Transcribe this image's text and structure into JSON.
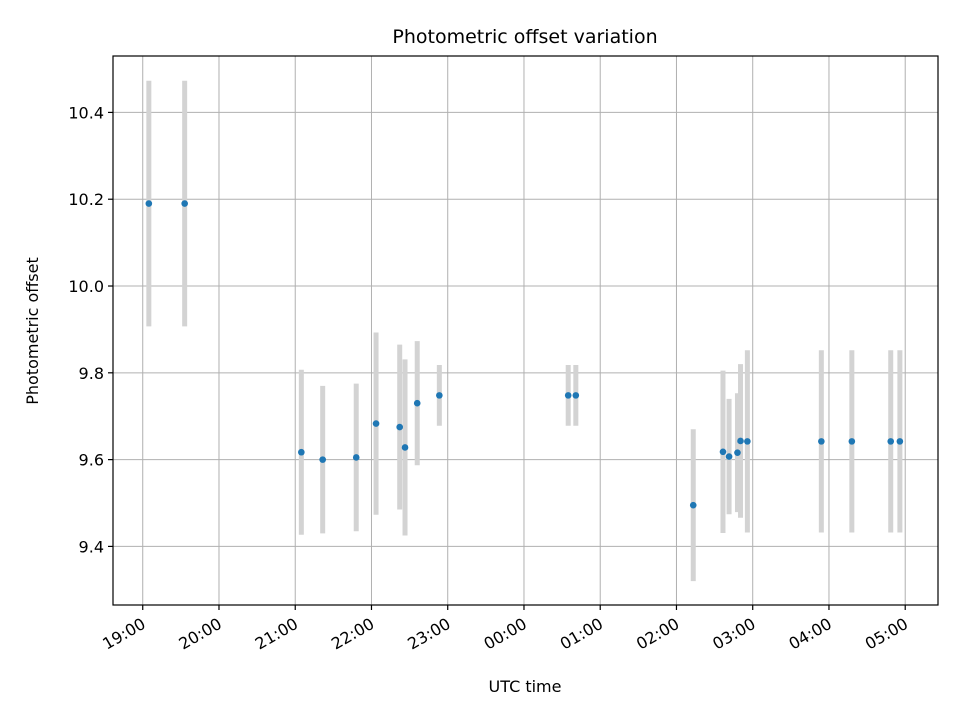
{
  "chart_data": {
    "type": "scatter",
    "title": "Photometric offset variation",
    "xlabel": "UTC time",
    "ylabel": "Photometric offset",
    "x_tick_labels": [
      "19:00",
      "20:00",
      "21:00",
      "22:00",
      "23:00",
      "00:00",
      "01:00",
      "02:00",
      "03:00",
      "04:00",
      "05:00"
    ],
    "x_tick_values": [
      19,
      20,
      21,
      22,
      23,
      24,
      25,
      26,
      27,
      28,
      29
    ],
    "y_tick_values": [
      9.4,
      9.6,
      9.8,
      10.0,
      10.2,
      10.4
    ],
    "y_tick_labels": [
      "9.4",
      "9.6",
      "9.8",
      "10.0",
      "10.2",
      "10.4"
    ],
    "xlim": [
      18.61,
      29.43
    ],
    "ylim": [
      9.265,
      10.53
    ],
    "grid": true,
    "colors": {
      "point": "#1f77b4",
      "errorbar": "#d3d3d3",
      "grid": "#b0b0b0"
    },
    "points": [
      {
        "x": 19.08,
        "y": 10.19,
        "err": 0.283
      },
      {
        "x": 19.55,
        "y": 10.19,
        "err": 0.283
      },
      {
        "x": 21.08,
        "y": 9.617,
        "err": 0.19
      },
      {
        "x": 21.36,
        "y": 9.6,
        "err": 0.17
      },
      {
        "x": 21.8,
        "y": 9.605,
        "err": 0.17
      },
      {
        "x": 22.06,
        "y": 9.683,
        "err": 0.21
      },
      {
        "x": 22.37,
        "y": 9.675,
        "err": 0.19
      },
      {
        "x": 22.44,
        "y": 9.628,
        "err": 0.203
      },
      {
        "x": 22.6,
        "y": 9.73,
        "err": 0.143
      },
      {
        "x": 22.89,
        "y": 9.748,
        "err": 0.07
      },
      {
        "x": 24.58,
        "y": 9.748,
        "err": 0.07
      },
      {
        "x": 24.68,
        "y": 9.748,
        "err": 0.07
      },
      {
        "x": 26.22,
        "y": 9.495,
        "err": 0.175
      },
      {
        "x": 26.61,
        "y": 9.618,
        "err": 0.187
      },
      {
        "x": 26.69,
        "y": 9.607,
        "err": 0.133
      },
      {
        "x": 26.8,
        "y": 9.616,
        "err": 0.137
      },
      {
        "x": 26.84,
        "y": 9.643,
        "err": 0.177
      },
      {
        "x": 26.93,
        "y": 9.642,
        "err": 0.21
      },
      {
        "x": 27.9,
        "y": 9.642,
        "err": 0.21
      },
      {
        "x": 28.3,
        "y": 9.642,
        "err": 0.21
      },
      {
        "x": 28.81,
        "y": 9.642,
        "err": 0.21
      },
      {
        "x": 28.93,
        "y": 9.642,
        "err": 0.21
      }
    ]
  }
}
